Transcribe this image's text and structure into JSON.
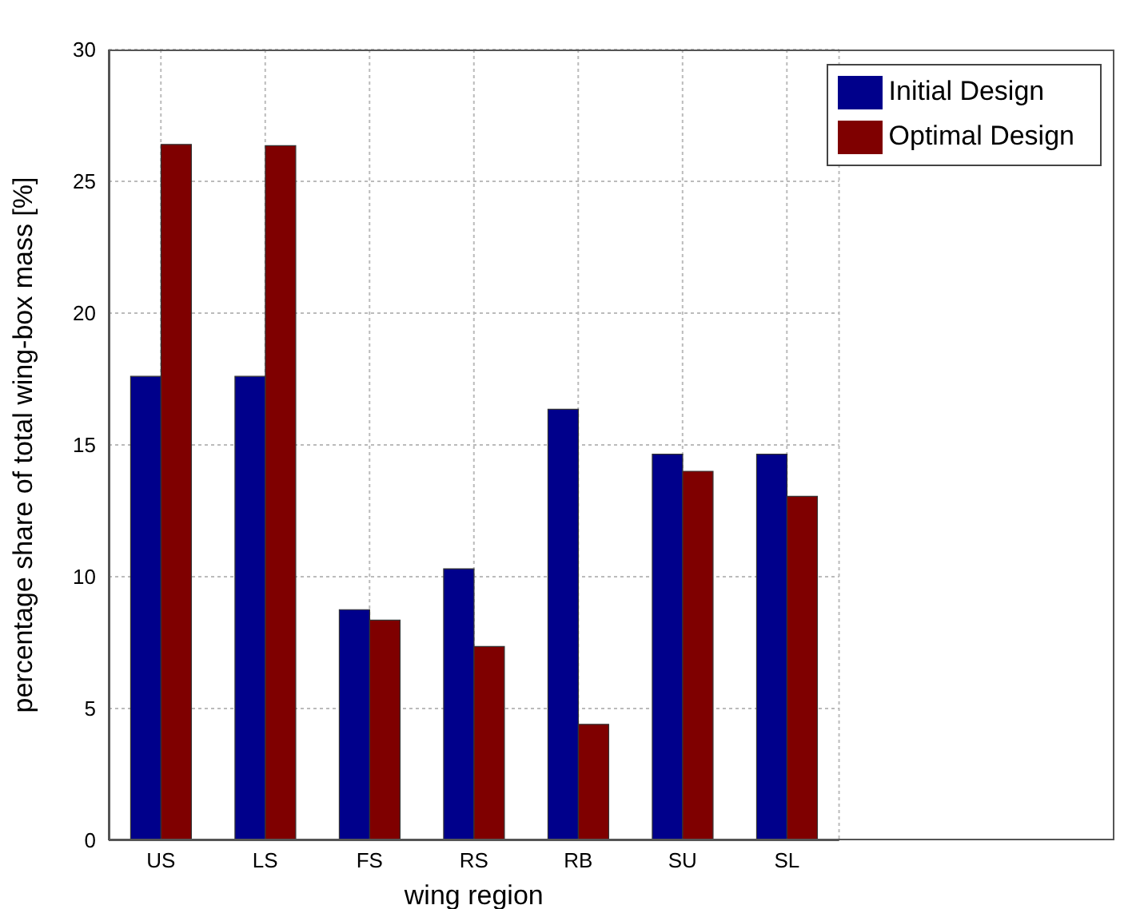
{
  "chart_data": {
    "type": "bar",
    "xlabel": "wing region",
    "ylabel": "percentage share of total wing-box mass [%]",
    "categories": [
      "US",
      "LS",
      "FS",
      "RS",
      "RB",
      "SU",
      "SL"
    ],
    "series": [
      {
        "name": "Initial Design",
        "color": "#00008b",
        "values": [
          17.6,
          17.6,
          8.75,
          10.3,
          16.35,
          14.65,
          14.65
        ]
      },
      {
        "name": "Optimal Design",
        "color": "#7f0000",
        "values": [
          26.4,
          26.35,
          8.35,
          7.35,
          4.4,
          14.0,
          13.05
        ]
      }
    ],
    "ylim": [
      0,
      30
    ],
    "yticks": [
      0,
      5,
      10,
      15,
      20,
      25,
      30
    ],
    "grid": true,
    "legend": "top right"
  }
}
